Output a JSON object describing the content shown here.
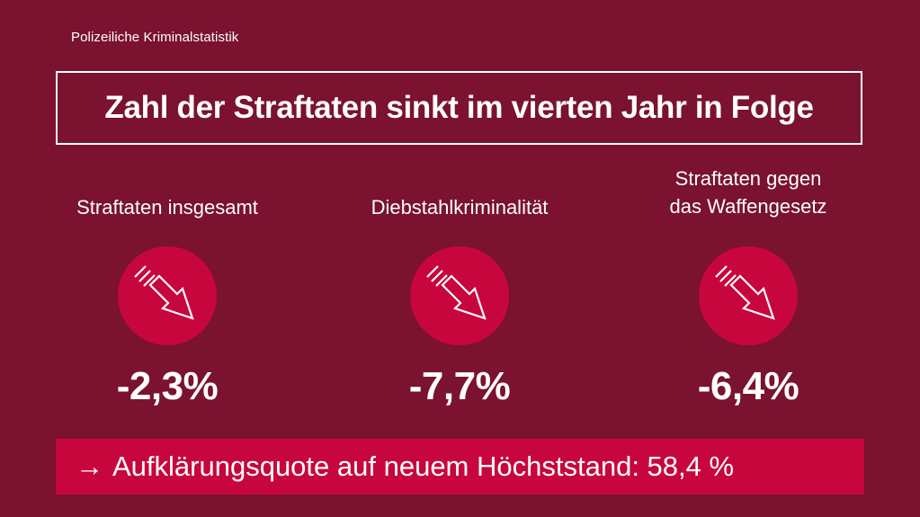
{
  "brand": "Polizeiliche Kriminalstatistik",
  "headline": "Zahl der Straftaten sinkt im vierten Jahr in Folge",
  "columns": [
    {
      "label_lines": [
        "Straftaten insgesamt"
      ],
      "icon": "arrow-down-right-icon",
      "value": "-2,3%"
    },
    {
      "label_lines": [
        "Diebstahlkriminalität"
      ],
      "icon": "arrow-down-right-icon",
      "value": "-7,7%"
    },
    {
      "label_lines": [
        "Straftaten gegen",
        "das Waffengesetz"
      ],
      "icon": "arrow-down-right-icon",
      "value": "-6,4%"
    }
  ],
  "banner": {
    "arrow": "→",
    "text": "Aufklärungsquote auf neuem Höchststand: 58,4 %"
  },
  "colors": {
    "background": "#7a1230",
    "accent": "#c8063e",
    "text": "#ffffff"
  }
}
